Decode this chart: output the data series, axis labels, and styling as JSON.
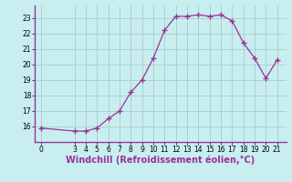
{
  "x": [
    0,
    3,
    4,
    5,
    6,
    7,
    8,
    9,
    10,
    11,
    12,
    13,
    14,
    15,
    16,
    17,
    18,
    19,
    20,
    21
  ],
  "y": [
    15.9,
    15.7,
    15.7,
    15.9,
    16.5,
    17.0,
    18.2,
    19.0,
    20.4,
    22.2,
    23.1,
    23.1,
    23.2,
    23.1,
    23.2,
    22.8,
    21.4,
    20.4,
    19.1,
    20.3
  ],
  "line_color": "#993399",
  "marker_color": "#993399",
  "bg_color": "#c8eef0",
  "grid_color": "#aacccc",
  "xlabel": "Windchill (Refroidissement éolien,°C)",
  "xlabel_color": "#993399",
  "ylim_min": 15.0,
  "ylim_max": 23.8,
  "xlim_min": -0.5,
  "xlim_max": 21.8,
  "yticks": [
    16,
    17,
    18,
    19,
    20,
    21,
    22,
    23
  ],
  "xticks": [
    0,
    3,
    4,
    5,
    6,
    7,
    8,
    9,
    10,
    11,
    12,
    13,
    14,
    15,
    16,
    17,
    18,
    19,
    20,
    21
  ],
  "tick_fontsize": 5.5,
  "xlabel_fontsize": 7.0,
  "spine_color": "#993399"
}
